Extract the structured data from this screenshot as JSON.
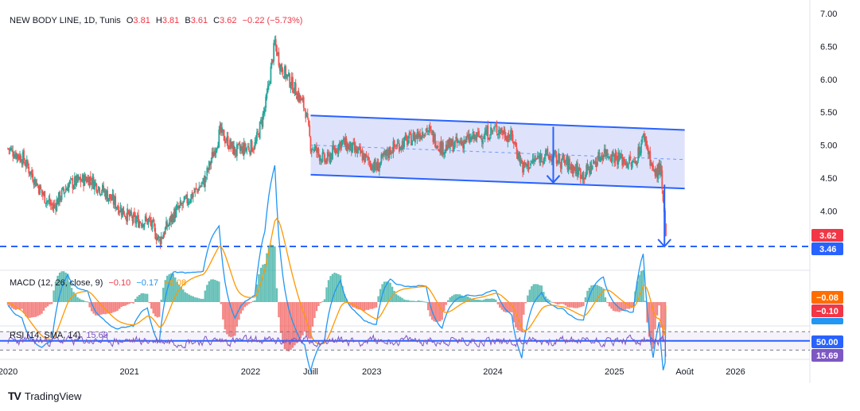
{
  "header": {
    "symbol": "NEW BODY LINE, 1D, Tunis",
    "open_label": "O",
    "open": "3.81",
    "high_label": "H",
    "high": "3.81",
    "low_label": "B",
    "low": "3.61",
    "close_label": "C",
    "close": "3.62",
    "change": "−0.22 (−5.73%)"
  },
  "indicators": {
    "macd_title": "MACD (12, 26, close, 9)",
    "macd_hist": "−0.10",
    "macd_line": "−0.17",
    "macd_signal": "−0.08",
    "rsi_title": "RSI (14, SMA, 14)",
    "rsi_value": "15.69"
  },
  "price_badges": {
    "last": "3.62",
    "support": "3.46",
    "macd_a": "−0.08",
    "macd_b": "−0.10",
    "macd_c": "−0.17",
    "rsi_mid": "50.00",
    "rsi_last": "15.69"
  },
  "colors": {
    "up": "#26a69a",
    "down": "#ef5350",
    "drawing": "#2962ff",
    "channel_fill": "#d6dcfa",
    "macd": "#2196f3",
    "signal": "#ff9800",
    "rsi": "#7e57c2",
    "text": "#131722",
    "badge_last": "#f23645",
    "badge_support": "#2962ff"
  },
  "chart_data": {
    "type": "candlestick",
    "title": "NEW BODY LINE, 1D, Tunis",
    "y_axis": {
      "ticks": [
        7.0,
        6.5,
        6.0,
        5.5,
        5.0,
        4.5,
        4.0
      ],
      "tick_labels": [
        "7.00",
        "6.50",
        "6.00",
        "5.50",
        "5.00",
        "4.50",
        "4.00"
      ],
      "range": [
        3.4,
        7.1
      ]
    },
    "x_axis": {
      "tick_labels": [
        "2020",
        "2021",
        "2022",
        "Juill",
        "2023",
        "2024",
        "2025",
        "Août",
        "2026"
      ],
      "tick_dates": [
        "2020-01-01",
        "2021-01-01",
        "2022-01-01",
        "2022-07-01",
        "2023-01-01",
        "2024-01-01",
        "2025-01-01",
        "2025-08-01",
        "2026-01-01"
      ],
      "range": [
        "2020-01-01",
        "2026-07-01"
      ]
    },
    "price_path": [
      [
        "2020-01-01",
        4.95
      ],
      [
        "2020-02-15",
        4.8
      ],
      [
        "2020-04-15",
        4.25
      ],
      [
        "2020-05-15",
        4.05
      ],
      [
        "2020-07-01",
        4.4
      ],
      [
        "2020-09-01",
        4.5
      ],
      [
        "2020-10-15",
        4.3
      ],
      [
        "2020-12-01",
        4.05
      ],
      [
        "2021-01-15",
        3.85
      ],
      [
        "2021-03-01",
        3.85
      ],
      [
        "2021-04-01",
        3.55
      ],
      [
        "2021-05-15",
        3.95
      ],
      [
        "2021-07-01",
        4.2
      ],
      [
        "2021-08-15",
        4.45
      ],
      [
        "2021-10-01",
        5.2
      ],
      [
        "2021-11-15",
        4.9
      ],
      [
        "2022-01-15",
        5.0
      ],
      [
        "2022-02-15",
        5.6
      ],
      [
        "2022-03-15",
        6.55
      ],
      [
        "2022-04-01",
        6.2
      ],
      [
        "2022-05-15",
        5.85
      ],
      [
        "2022-06-15",
        5.55
      ],
      [
        "2022-07-01",
        5.0
      ],
      [
        "2022-08-15",
        4.75
      ],
      [
        "2022-10-01",
        5.05
      ],
      [
        "2022-12-01",
        4.85
      ],
      [
        "2023-01-15",
        4.65
      ],
      [
        "2023-03-01",
        4.95
      ],
      [
        "2023-05-01",
        5.1
      ],
      [
        "2023-06-15",
        5.25
      ],
      [
        "2023-08-01",
        4.95
      ],
      [
        "2023-10-01",
        5.05
      ],
      [
        "2023-12-01",
        5.15
      ],
      [
        "2024-01-15",
        5.25
      ],
      [
        "2024-03-01",
        5.1
      ],
      [
        "2024-04-01",
        4.65
      ],
      [
        "2024-06-01",
        4.85
      ],
      [
        "2024-08-01",
        4.75
      ],
      [
        "2024-10-01",
        4.55
      ],
      [
        "2024-12-01",
        4.9
      ],
      [
        "2025-01-15",
        4.8
      ],
      [
        "2025-03-01",
        4.7
      ],
      [
        "2025-04-01",
        5.15
      ],
      [
        "2025-05-01",
        4.55
      ],
      [
        "2025-05-20",
        4.65
      ],
      [
        "2025-06-01",
        3.81
      ],
      [
        "2025-06-05",
        3.62
      ]
    ],
    "annotations": {
      "channel_upper": [
        [
          "2022-07-01",
          5.45
        ],
        [
          "2025-08-01",
          5.23
        ]
      ],
      "channel_lower": [
        [
          "2022-07-01",
          4.55
        ],
        [
          "2025-08-01",
          4.34
        ]
      ],
      "channel_mid": [
        [
          "2022-07-01",
          5.0
        ],
        [
          "2025-08-01",
          4.78
        ]
      ],
      "measured_move": [
        [
          "2024-07-01",
          5.28
        ],
        [
          "2024-07-01",
          4.43
        ]
      ],
      "target_arrow": [
        [
          "2025-06-01",
          4.4
        ],
        [
          "2025-06-01",
          3.46
        ]
      ],
      "support_level": 3.46
    },
    "last_close": 3.62,
    "macd": {
      "hist": -0.1,
      "macd": -0.17,
      "signal": -0.08,
      "range": [
        -0.6,
        0.6
      ]
    },
    "rsi": {
      "value": 15.69,
      "sma_period": 14,
      "levels": [
        70,
        50,
        30
      ]
    },
    "legend_position": "top-left"
  },
  "branding": {
    "logo": "TV",
    "text": "TradingView"
  }
}
